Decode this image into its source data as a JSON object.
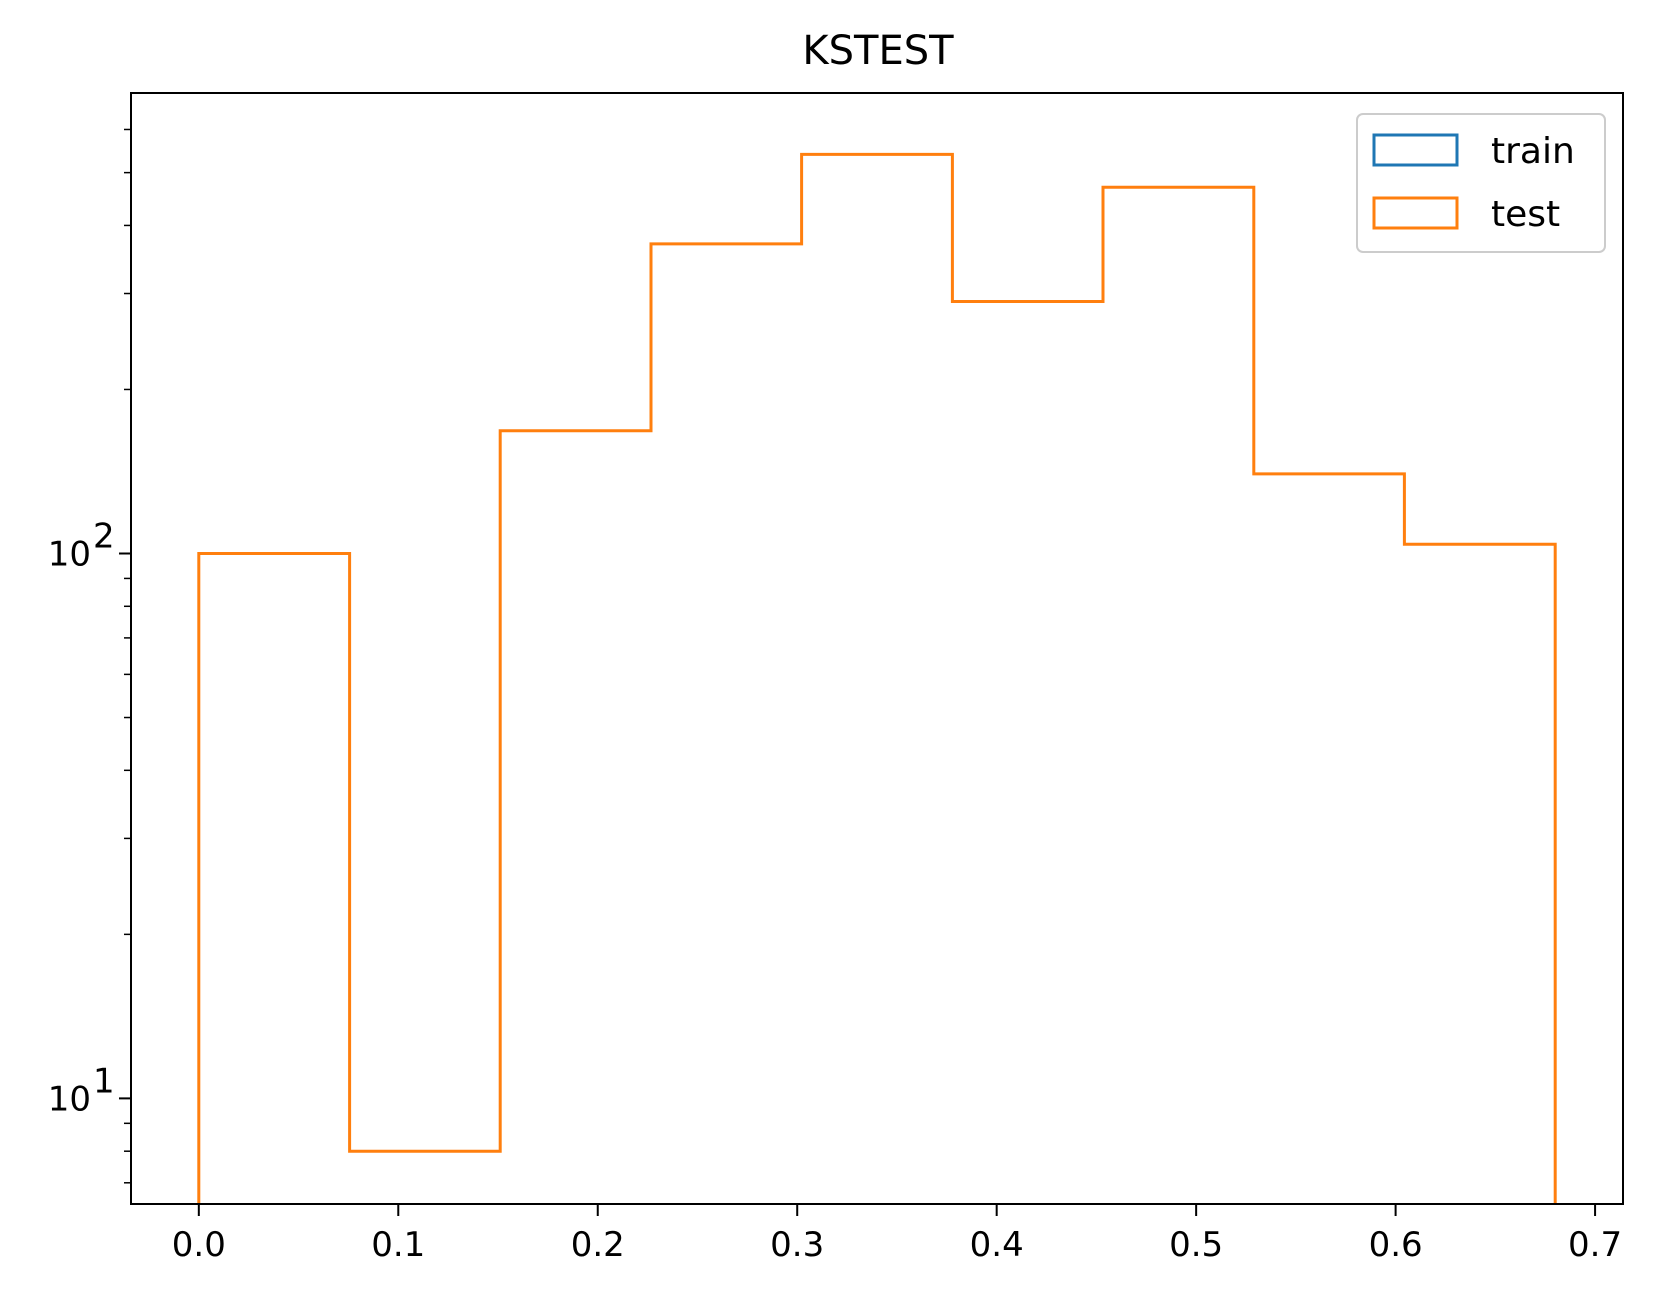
{
  "chart_data": {
    "type": "bar",
    "histtype": "step",
    "title": "KSTEST",
    "xlabel": "",
    "ylabel": "",
    "yscale": "log",
    "xlim": [
      -0.034,
      0.714
    ],
    "ylim": [
      6.4,
      700
    ],
    "x_ticks": [
      0.0,
      0.1,
      0.2,
      0.3,
      0.4,
      0.5,
      0.6,
      0.7
    ],
    "x_tick_labels": [
      "0.0",
      "0.1",
      "0.2",
      "0.3",
      "0.4",
      "0.5",
      "0.6",
      "0.7"
    ],
    "y_ticks": [
      {
        "value": 10,
        "base": "10",
        "exp": "1"
      },
      {
        "value": 100,
        "base": "10",
        "exp": "2"
      }
    ],
    "bin_edges": [
      0.0,
      0.0756,
      0.1511,
      0.2267,
      0.3022,
      0.3778,
      0.4533,
      0.5289,
      0.6044,
      0.68
    ],
    "series": [
      {
        "name": "train",
        "color": "#1f77b4",
        "counts": []
      },
      {
        "name": "test",
        "color": "#ff7f0e",
        "counts": [
          100,
          8,
          168,
          370,
          540,
          290,
          470,
          140,
          104
        ]
      }
    ],
    "grid": false,
    "legend_position": "top-right"
  }
}
